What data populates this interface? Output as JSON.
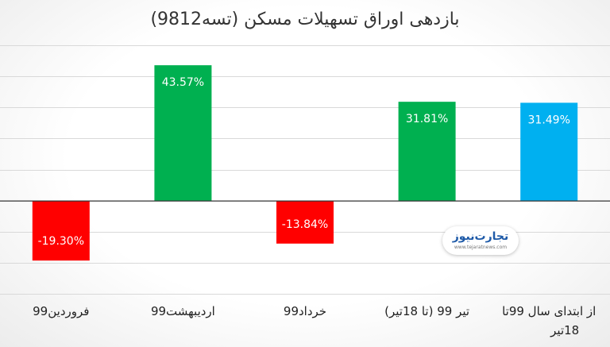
{
  "chart_data": {
    "type": "bar",
    "title": "بازدهی اوراق تسهیلات مسکن (تسه9812)",
    "categories": [
      "فروردین99",
      "اردیبهشت99",
      "خرداد99",
      "تیر 99 (تا 18تیر)",
      "از ابتدای سال 99تا 18تیر"
    ],
    "values": [
      -19.3,
      43.57,
      -13.84,
      31.81,
      31.49
    ],
    "value_labels": [
      "-19.30%",
      "43.57%",
      "-13.84%",
      "31.81%",
      "31.49%"
    ],
    "bar_colors": [
      "#ff0000",
      "#00b050",
      "#ff0000",
      "#00b050",
      "#00b0f0"
    ],
    "ylim": [
      -30,
      50
    ],
    "y_grid_step": 10,
    "grid": true,
    "legend": "none",
    "xlabel": "",
    "ylabel": ""
  },
  "watermark": {
    "logo_text": "تجارت‌نیوز",
    "url_text": "www.tejaratnews.com"
  },
  "colors": {
    "negative": "#ff0000",
    "positive": "#00b050",
    "total": "#00b0f0"
  }
}
